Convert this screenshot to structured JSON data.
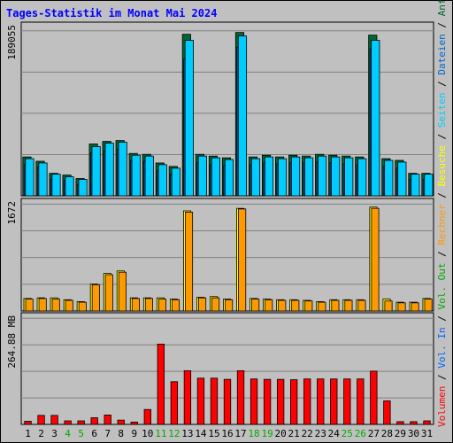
{
  "chart_data": [
    {
      "type": "bar",
      "title": "Tages-Statistik im Monat Mai 2024",
      "categories": [
        "1",
        "2",
        "3",
        "4",
        "5",
        "6",
        "7",
        "8",
        "9",
        "10",
        "11",
        "12",
        "13",
        "14",
        "15",
        "16",
        "17",
        "18",
        "19",
        "20",
        "21",
        "22",
        "23",
        "24",
        "25",
        "26",
        "27",
        "28",
        "29",
        "30",
        "31"
      ],
      "weekend_days": [
        "4",
        "5",
        "11",
        "12",
        "18",
        "19",
        "25",
        "26"
      ],
      "y_max_label": "189055",
      "ylim": [
        0,
        189055
      ],
      "series": [
        {
          "name": "Anfragen",
          "color": "#006633",
          "values": [
            45000,
            40000,
            26000,
            24000,
            20000,
            60000,
            63000,
            64000,
            49000,
            48000,
            38000,
            34000,
            187000,
            48000,
            46000,
            44000,
            192000,
            45000,
            47000,
            45000,
            47000,
            46000,
            48000,
            47000,
            46000,
            45000,
            186000,
            43000,
            41000,
            26000,
            26000
          ]
        },
        {
          "name": "Dateien",
          "color": "#0066cc",
          "values": [
            36000,
            33000,
            19000,
            18000,
            13000,
            50000,
            52000,
            54000,
            41000,
            40000,
            29000,
            25000,
            158000,
            38000,
            36000,
            35000,
            172000,
            36000,
            38000,
            37000,
            38000,
            38000,
            39000,
            38000,
            37000,
            36000,
            170000,
            34000,
            32000,
            19000,
            19000
          ]
        },
        {
          "name": "Seiten",
          "color": "#00ccff",
          "values": [
            43000,
            38000,
            25000,
            22000,
            19000,
            57000,
            61000,
            62000,
            47000,
            46000,
            36000,
            32000,
            180000,
            46000,
            44000,
            42000,
            185000,
            43000,
            45000,
            43000,
            45000,
            44000,
            46000,
            45000,
            44000,
            43000,
            180000,
            41000,
            39000,
            25000,
            25000
          ]
        }
      ]
    },
    {
      "type": "bar",
      "y_max_label": "1672",
      "ylim": [
        0,
        1672
      ],
      "series": [
        {
          "name": "Besuche",
          "color": "#ffff00",
          "values": [
            200,
            210,
            210,
            180,
            150,
            430,
            600,
            640,
            210,
            210,
            210,
            190,
            1600,
            220,
            230,
            190,
            1640,
            200,
            190,
            180,
            180,
            170,
            150,
            180,
            180,
            180,
            1660,
            190,
            140,
            140,
            200
          ]
        },
        {
          "name": "Rechner",
          "color": "#ff9900",
          "values": [
            190,
            200,
            190,
            170,
            140,
            420,
            580,
            620,
            200,
            200,
            190,
            180,
            1580,
            210,
            210,
            180,
            1630,
            190,
            180,
            170,
            170,
            160,
            140,
            170,
            170,
            170,
            1640,
            160,
            130,
            130,
            190
          ]
        }
      ]
    },
    {
      "type": "bar",
      "y_max_label": "264.88 MB",
      "ylim": [
        0,
        264.88
      ],
      "series": [
        {
          "name": "Volumen",
          "color": "#ff0000",
          "values": [
            8,
            23,
            23,
            9,
            9,
            17,
            24,
            11,
            6,
            38,
            205,
            109,
            137,
            118,
            118,
            115,
            137,
            116,
            115,
            115,
            114,
            116,
            116,
            116,
            116,
            116,
            136,
            60,
            7,
            7,
            9
          ]
        }
      ]
    }
  ],
  "legend": {
    "volumen": "Volumen",
    "vol_in": "Vol. In",
    "vol_out": "Vol. Out",
    "rechner": "Rechner",
    "besuche": "Besuche",
    "seiten": "Seiten",
    "dateien": "Dateien",
    "anfragen": "Anfragen",
    "separator": "/"
  },
  "colors": {
    "title": "#0000ff",
    "weekend_label": "#00aa00",
    "weekday_label": "#000000",
    "plot_bg": "#c0c0c0",
    "frame_bg": "#c0c0c0",
    "grid": "#808080",
    "vol_in": "#0066ff",
    "vol_out": "#00aa00"
  }
}
